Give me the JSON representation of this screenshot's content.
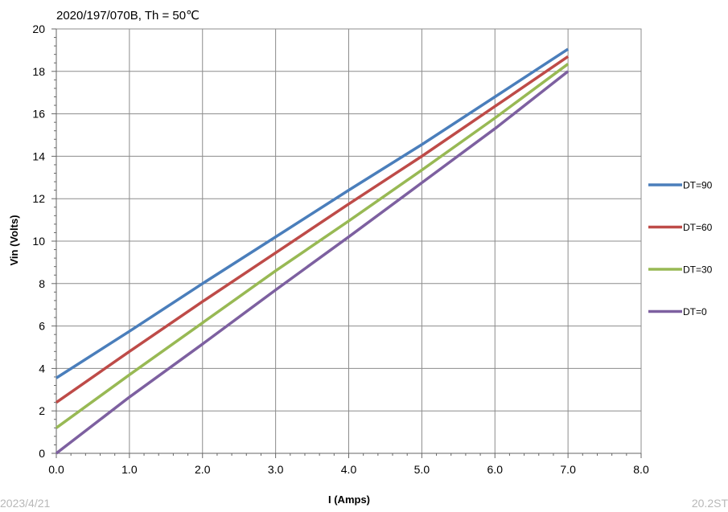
{
  "footer": {
    "date": "2023/4/21",
    "right": "20.2ST"
  },
  "chart_data": {
    "type": "line",
    "title": "2020/197/070B, Th = 50℃",
    "xlabel": "I (Amps)",
    "ylabel": "Vin (Volts)",
    "xlim": [
      0,
      8
    ],
    "ylim": [
      0,
      20
    ],
    "x_ticks": [
      "0.0",
      "1.0",
      "2.0",
      "3.0",
      "4.0",
      "5.0",
      "6.0",
      "7.0",
      "8.0"
    ],
    "y_ticks": [
      "0",
      "2",
      "4",
      "6",
      "8",
      "10",
      "12",
      "14",
      "16",
      "18",
      "20"
    ],
    "grid": true,
    "legend_position": "right",
    "x": [
      0,
      1,
      2,
      3,
      4,
      5,
      6,
      7
    ],
    "series": [
      {
        "name": "DT=90",
        "color": "#4a7ebb",
        "values": [
          3.55,
          5.75,
          8.0,
          10.2,
          12.4,
          14.55,
          16.8,
          19.05
        ]
      },
      {
        "name": "DT=60",
        "color": "#be4b48",
        "values": [
          2.4,
          4.8,
          7.15,
          9.45,
          11.75,
          14.0,
          16.35,
          18.7
        ]
      },
      {
        "name": "DT=30",
        "color": "#98b954",
        "values": [
          1.2,
          3.7,
          6.15,
          8.6,
          10.95,
          13.35,
          15.8,
          18.35
        ]
      },
      {
        "name": "DT=0",
        "color": "#7d60a0",
        "values": [
          0.0,
          2.65,
          5.15,
          7.7,
          10.2,
          12.75,
          15.3,
          18.0
        ]
      }
    ]
  }
}
